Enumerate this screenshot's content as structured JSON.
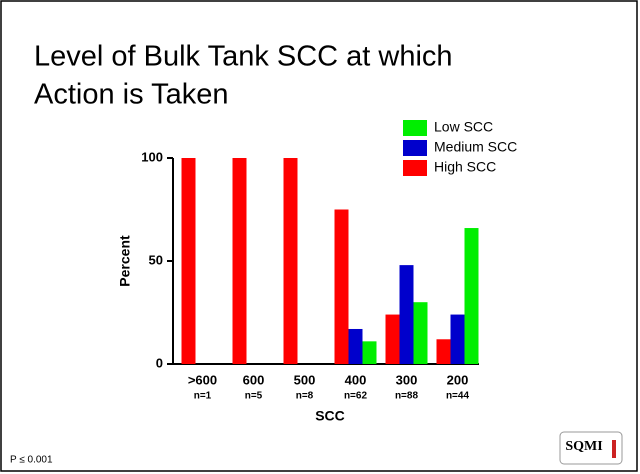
{
  "chart_data": {
    "type": "bar",
    "title": "Level of Bulk Tank SCC at which Action is Taken",
    "categories": [
      ">600",
      "600",
      "500",
      "400",
      "300",
      "200"
    ],
    "sample_sizes": [
      "n=1",
      "n=5",
      "n=8",
      "n=62",
      "n=88",
      "n=44"
    ],
    "x_label": "SCC",
    "y_label": "Percent",
    "series": [
      {
        "name": "High SCC",
        "color": "#ff0000",
        "values": [
          100,
          100,
          100,
          75,
          24,
          12
        ]
      },
      {
        "name": "Medium SCC",
        "color": "#0000cc",
        "values": [
          0,
          0,
          0,
          17,
          48,
          24
        ]
      },
      {
        "name": "Low SCC",
        "color": "#00ee00",
        "values": [
          0,
          0,
          0,
          11,
          30,
          66
        ]
      }
    ],
    "ylim": [
      0,
      100
    ],
    "yticks": [
      0,
      50,
      100
    ],
    "footnote": "P ≤ 0.001",
    "logo": "SQMI"
  }
}
